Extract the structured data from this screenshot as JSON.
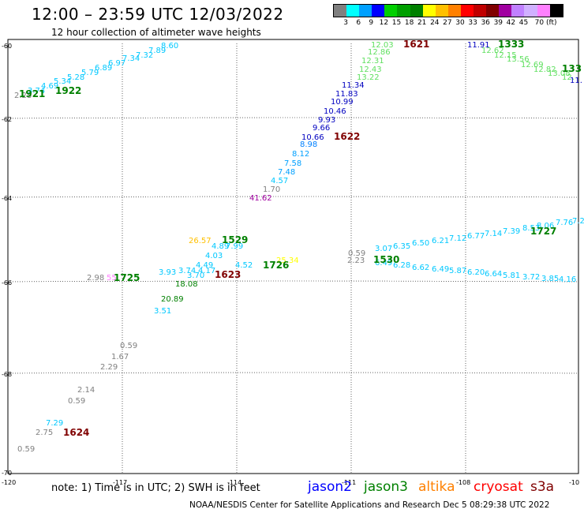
{
  "header": {
    "title": "12:00 – 23:59 UTC 12/03/2022",
    "subtitle": "12 hour collection of altimeter wave heights"
  },
  "legend": {
    "colors": [
      "#808080",
      "#00ffff",
      "#00a0ff",
      "#0000ff",
      "#00d000",
      "#00a000",
      "#008000",
      "#ffff00",
      "#ffc000",
      "#ff8000",
      "#ff0000",
      "#c00000",
      "#800000",
      "#a000a0",
      "#c080ff",
      "#d0b0ff",
      "#ff80ff",
      "#000000"
    ],
    "labels": [
      "3",
      "6",
      "9",
      "12",
      "15",
      "18",
      "21",
      "24",
      "27",
      "30",
      "33",
      "36",
      "39",
      "42",
      "45",
      "70 (ft)"
    ]
  },
  "map": {
    "lat_ticks": [
      "-60",
      "-62",
      "-64",
      "-66",
      "-68",
      "-70"
    ],
    "lon_ticks": [
      "-120",
      "-117",
      "-114",
      "-111",
      "-108",
      "-10"
    ],
    "time_labels": [
      {
        "text": "1921",
        "color": "#008000"
      },
      {
        "text": "1922",
        "color": "#008000"
      },
      {
        "text": "1621",
        "color": "#800000"
      },
      {
        "text": "1333",
        "color": "#008000"
      },
      {
        "text": "133",
        "color": "#008000"
      },
      {
        "text": "1622",
        "color": "#800000"
      },
      {
        "text": "1529",
        "color": "#008000"
      },
      {
        "text": "1623",
        "color": "#800000"
      },
      {
        "text": "1726",
        "color": "#008000"
      },
      {
        "text": "1530",
        "color": "#008000"
      },
      {
        "text": "1727",
        "color": "#008000"
      },
      {
        "text": "1725",
        "color": "#008000"
      },
      {
        "text": "1624",
        "color": "#800000"
      }
    ],
    "values": [
      {
        "text": "2.28",
        "color": "#808080"
      },
      {
        "text": "3.74",
        "color": "#00c8ff"
      },
      {
        "text": "4.69",
        "color": "#00c8ff"
      },
      {
        "text": "5.34",
        "color": "#00c8ff"
      },
      {
        "text": "5.28",
        "color": "#00c8ff"
      },
      {
        "text": "5.79",
        "color": "#00c8ff"
      },
      {
        "text": "6.89",
        "color": "#00c8ff"
      },
      {
        "text": "6.97",
        "color": "#00c8ff"
      },
      {
        "text": "7.34",
        "color": "#00c8ff"
      },
      {
        "text": "7.32",
        "color": "#00c8ff"
      },
      {
        "text": "7.89",
        "color": "#00c8ff"
      },
      {
        "text": "8.60",
        "color": "#00c8ff"
      },
      {
        "text": "12.03",
        "color": "#60e060"
      },
      {
        "text": "12.86",
        "color": "#60e060"
      },
      {
        "text": "12.31",
        "color": "#60e060"
      },
      {
        "text": "12.43",
        "color": "#60e060"
      },
      {
        "text": "13.22",
        "color": "#60e060"
      },
      {
        "text": "11.34",
        "color": "#0000c0"
      },
      {
        "text": "11.83",
        "color": "#0000c0"
      },
      {
        "text": "10.99",
        "color": "#0000c0"
      },
      {
        "text": "10.46",
        "color": "#0000c0"
      },
      {
        "text": "9.93",
        "color": "#0000c0"
      },
      {
        "text": "9.66",
        "color": "#0000c0"
      },
      {
        "text": "10.66",
        "color": "#0000c0"
      },
      {
        "text": "8.98",
        "color": "#0080ff"
      },
      {
        "text": "8.12",
        "color": "#00a0ff"
      },
      {
        "text": "7.58",
        "color": "#00a0ff"
      },
      {
        "text": "7.48",
        "color": "#00a0ff"
      },
      {
        "text": "4.57",
        "color": "#00c8ff"
      },
      {
        "text": "1.70",
        "color": "#808080"
      },
      {
        "text": "41.62",
        "color": "#a000a0"
      },
      {
        "text": "11.91",
        "color": "#0000c0"
      },
      {
        "text": "12.62",
        "color": "#60e060"
      },
      {
        "text": "12.15",
        "color": "#60e060"
      },
      {
        "text": "13.56",
        "color": "#60e060"
      },
      {
        "text": "12.69",
        "color": "#60e060"
      },
      {
        "text": "12.82",
        "color": "#60e060"
      },
      {
        "text": "13.08",
        "color": "#60e060"
      },
      {
        "text": "12.",
        "color": "#60e060"
      },
      {
        "text": "11.",
        "color": "#0000c0"
      },
      {
        "text": "26.57",
        "color": "#ffc000"
      },
      {
        "text": "4.89",
        "color": "#00c8ff"
      },
      {
        "text": "7.99",
        "color": "#00c8ff"
      },
      {
        "text": "4.03",
        "color": "#00c8ff"
      },
      {
        "text": "4.49",
        "color": "#00c8ff"
      },
      {
        "text": "3.93",
        "color": "#00c8ff"
      },
      {
        "text": "3.74",
        "color": "#00c8ff"
      },
      {
        "text": "4.17",
        "color": "#00c8ff"
      },
      {
        "text": "3.70",
        "color": "#00c8ff"
      },
      {
        "text": "4.52",
        "color": "#00c8ff"
      },
      {
        "text": "18.08",
        "color": "#008000"
      },
      {
        "text": "20.89",
        "color": "#008000"
      },
      {
        "text": "3.51",
        "color": "#00c8ff"
      },
      {
        "text": "2.98",
        "color": "#808080"
      },
      {
        "text": "55",
        "color": "#ff80ff"
      },
      {
        "text": "25.34",
        "color": "#ffff00"
      },
      {
        "text": "0.59",
        "color": "#808080"
      },
      {
        "text": "2.23",
        "color": "#808080"
      },
      {
        "text": "3.07",
        "color": "#00c8ff"
      },
      {
        "text": "6.35",
        "color": "#00c8ff"
      },
      {
        "text": "6.50",
        "color": "#00c8ff"
      },
      {
        "text": "6.21",
        "color": "#00c8ff"
      },
      {
        "text": "7.12",
        "color": "#00c8ff"
      },
      {
        "text": "6.77",
        "color": "#00c8ff"
      },
      {
        "text": "7.14",
        "color": "#00c8ff"
      },
      {
        "text": "7.39",
        "color": "#00c8ff"
      },
      {
        "text": "8.53",
        "color": "#00c8ff"
      },
      {
        "text": "8.06",
        "color": "#00c8ff"
      },
      {
        "text": "7.76",
        "color": "#00c8ff"
      },
      {
        "text": "7.2",
        "color": "#00c8ff"
      },
      {
        "text": "6.49",
        "color": "#00c8ff"
      },
      {
        "text": "6.28",
        "color": "#00c8ff"
      },
      {
        "text": "6.62",
        "color": "#00c8ff"
      },
      {
        "text": "6.49",
        "color": "#00c8ff"
      },
      {
        "text": "5.87",
        "color": "#00c8ff"
      },
      {
        "text": "6.20",
        "color": "#00c8ff"
      },
      {
        "text": "6.64",
        "color": "#00c8ff"
      },
      {
        "text": "5.81",
        "color": "#00c8ff"
      },
      {
        "text": "3.72",
        "color": "#00c8ff"
      },
      {
        "text": "3.85",
        "color": "#00c8ff"
      },
      {
        "text": "4.16",
        "color": "#00c8ff"
      },
      {
        "text": "0.59",
        "color": "#808080"
      },
      {
        "text": "1.67",
        "color": "#808080"
      },
      {
        "text": "2.29",
        "color": "#808080"
      },
      {
        "text": "2.14",
        "color": "#808080"
      },
      {
        "text": "0.59",
        "color": "#808080"
      },
      {
        "text": "7.29",
        "color": "#00c8ff"
      },
      {
        "text": "2.75",
        "color": "#808080"
      },
      {
        "text": "0.59",
        "color": "#808080"
      }
    ]
  },
  "footer": {
    "note": "note: 1) Time is in UTC; 2) SWH is in feet",
    "satellites": [
      {
        "name": "jason2",
        "color": "#0000ff"
      },
      {
        "name": "jason3",
        "color": "#008000"
      },
      {
        "name": "altika",
        "color": "#ff8000"
      },
      {
        "name": "cryosat",
        "color": "#ff0000"
      },
      {
        "name": "s3a",
        "color": "#800000"
      }
    ],
    "credit": "NOAA/NESDIS Center for Satellite Applications and Research    Dec  5 08:29:38 UTC 2022"
  }
}
